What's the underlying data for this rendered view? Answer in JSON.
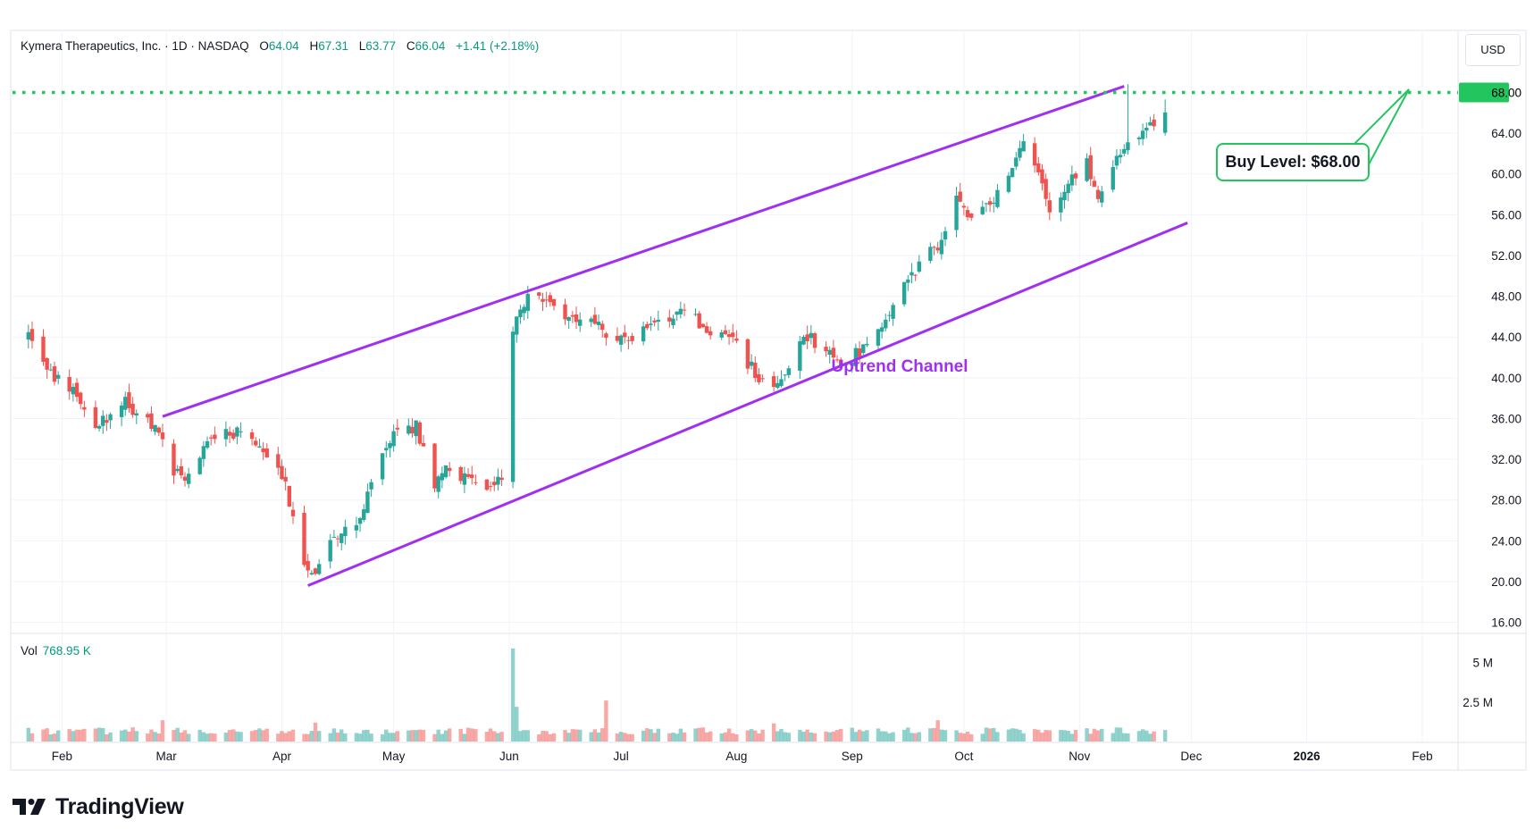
{
  "legend": {
    "symbol": "Kymera Therapeutics, Inc. · 1D · NASDAQ",
    "open_label": "O",
    "open": "64.04",
    "high_label": "H",
    "high": "67.31",
    "low_label": "L",
    "low": "63.77",
    "close_label": "C",
    "close": "66.04",
    "change": "+1.41 (+2.18%)"
  },
  "volume_legend": {
    "label": "Vol",
    "value": "768.95 K"
  },
  "currency": "USD",
  "brand": "TradingView",
  "colors": {
    "up": "#26a69a",
    "down": "#ef5350",
    "channel": "#a030f0",
    "buy": "#22c55e"
  },
  "annotations": {
    "channel_label": "Uptrend Channel",
    "buy_label": "Buy Level: $68.00",
    "buy_price_tag": "68.00"
  },
  "chart_data": {
    "type": "candlestick",
    "x_axis": {
      "labels": [
        "Feb",
        "Mar",
        "Apr",
        "May",
        "Jun",
        "Jul",
        "Aug",
        "Sep",
        "Oct",
        "Nov",
        "Dec",
        "2026",
        "Feb"
      ]
    },
    "y_axis": {
      "ticks": [
        "16.00",
        "20.00",
        "24.00",
        "28.00",
        "32.00",
        "36.00",
        "40.00",
        "44.00",
        "48.00",
        "52.00",
        "56.00",
        "60.00",
        "64.00"
      ],
      "range": [
        15,
        74
      ]
    },
    "volume_axis": {
      "ticks": [
        "5 M",
        "2.5 M"
      ]
    },
    "buy_level": 68.0,
    "channel": {
      "upper": [
        [
          "2025-02-28",
          36.2
        ],
        [
          "2025-11-13",
          68.6
        ]
      ],
      "lower": [
        [
          "2025-04-08",
          19.6
        ],
        [
          "2025-11-30",
          55.2
        ]
      ]
    },
    "anchors": [
      [
        "2025-01-23",
        44.2
      ],
      [
        "2025-01-28",
        40.5
      ],
      [
        "2025-02-05",
        38.5
      ],
      [
        "2025-02-10",
        35.0
      ],
      [
        "2025-02-18",
        37.5
      ],
      [
        "2025-02-21",
        36.6
      ],
      [
        "2025-02-27",
        35.0
      ],
      [
        "2025-03-03",
        31.0
      ],
      [
        "2025-03-06",
        30.5
      ],
      [
        "2025-03-12",
        33.5
      ],
      [
        "2025-03-18",
        34.8
      ],
      [
        "2025-03-24",
        34.0
      ],
      [
        "2025-03-28",
        32.5
      ],
      [
        "2025-04-02",
        29.5
      ],
      [
        "2025-04-07",
        22.0
      ],
      [
        "2025-04-10",
        20.5
      ],
      [
        "2025-04-14",
        24.5
      ],
      [
        "2025-04-21",
        25.5
      ],
      [
        "2025-04-24",
        28.5
      ],
      [
        "2025-04-28",
        33.0
      ],
      [
        "2025-05-02",
        34.5
      ],
      [
        "2025-05-07",
        35.2
      ],
      [
        "2025-05-12",
        29.5
      ],
      [
        "2025-05-16",
        31.5
      ],
      [
        "2025-05-21",
        29.8
      ],
      [
        "2025-05-28",
        29.5
      ],
      [
        "2025-05-30",
        29.8
      ],
      [
        "2025-06-02",
        44.5
      ],
      [
        "2025-06-05",
        47.5
      ],
      [
        "2025-06-09",
        48.2
      ],
      [
        "2025-06-13",
        46.5
      ],
      [
        "2025-06-20",
        46.0
      ],
      [
        "2025-06-27",
        44.5
      ],
      [
        "2025-07-03",
        44.0
      ],
      [
        "2025-07-10",
        45.5
      ],
      [
        "2025-07-17",
        46.5
      ],
      [
        "2025-07-24",
        45.0
      ],
      [
        "2025-07-31",
        43.5
      ],
      [
        "2025-08-06",
        40.5
      ],
      [
        "2025-08-11",
        38.5
      ],
      [
        "2025-08-15",
        41.5
      ],
      [
        "2025-08-20",
        44.0
      ],
      [
        "2025-08-26",
        42.5
      ],
      [
        "2025-08-29",
        41.0
      ],
      [
        "2025-09-04",
        43.0
      ],
      [
        "2025-09-09",
        45.0
      ],
      [
        "2025-09-15",
        49.5
      ],
      [
        "2025-09-19",
        51.0
      ],
      [
        "2025-09-25",
        53.5
      ],
      [
        "2025-09-29",
        57.5
      ],
      [
        "2025-10-03",
        55.5
      ],
      [
        "2025-10-08",
        57.0
      ],
      [
        "2025-10-14",
        60.0
      ],
      [
        "2025-10-17",
        63.0
      ],
      [
        "2025-10-21",
        60.5
      ],
      [
        "2025-10-24",
        56.0
      ],
      [
        "2025-10-28",
        58.5
      ],
      [
        "2025-11-03",
        61.5
      ],
      [
        "2025-11-06",
        57.0
      ],
      [
        "2025-11-10",
        60.5
      ],
      [
        "2025-11-14",
        63.5
      ],
      [
        "2025-11-19",
        64.5
      ],
      [
        "2025-11-24",
        66.04
      ]
    ],
    "volume_spikes": {
      "2025-02-28": 1.35,
      "2025-04-10": 1.2,
      "2025-06-02": 5.9,
      "2025-06-03": 2.2,
      "2025-06-27": 2.6,
      "2025-08-11": 1.15,
      "2025-09-24": 1.35
    }
  }
}
